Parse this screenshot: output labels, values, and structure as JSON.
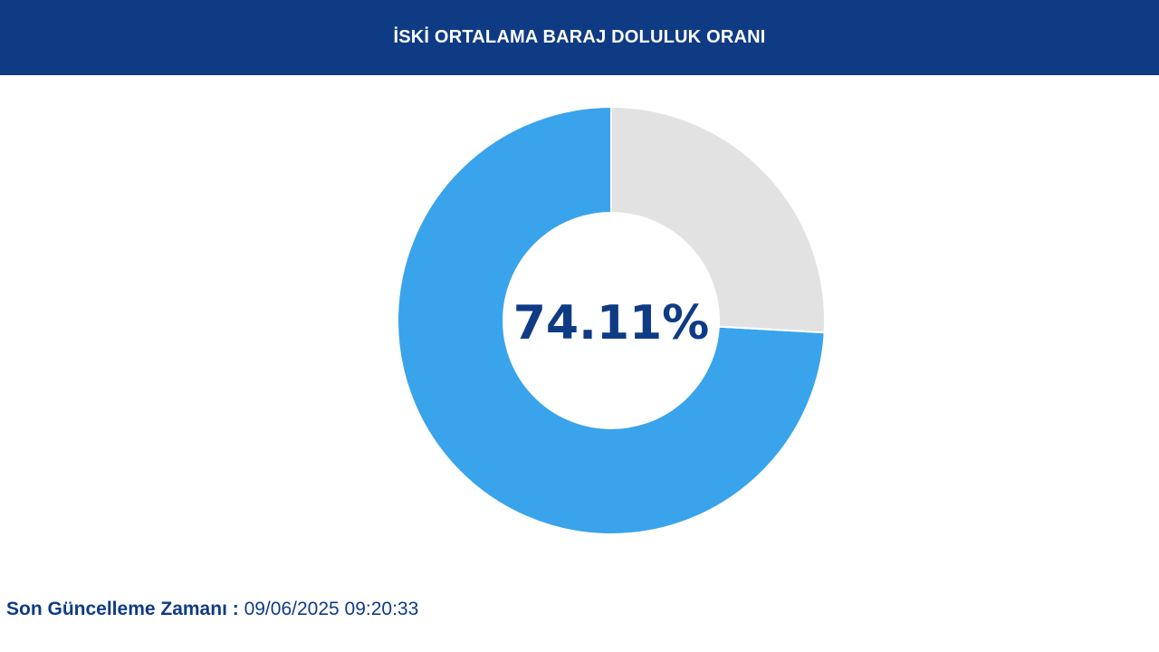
{
  "header": {
    "title": "İSKİ ORTALAMA BARAJ DOLULUK ORANI"
  },
  "colors": {
    "header_bg": "#0f3b85",
    "filled": "#39a3eb",
    "empty": "#e2e2e2",
    "value_text": "#0f3b85"
  },
  "chart_data": {
    "type": "pie",
    "variant": "donut",
    "title": "İSKİ ORTALAMA BARAJ DOLULUK ORANI",
    "center_label": "74.11%",
    "slices": [
      {
        "value": 74.11,
        "color": "#39a3eb"
      },
      {
        "value": 25.89,
        "color": "#e2e2e2"
      }
    ],
    "legend": "none"
  },
  "footer": {
    "label": "Son Güncelleme Zamanı",
    "separator": " : ",
    "value": "09/06/2025 09:20:33"
  }
}
